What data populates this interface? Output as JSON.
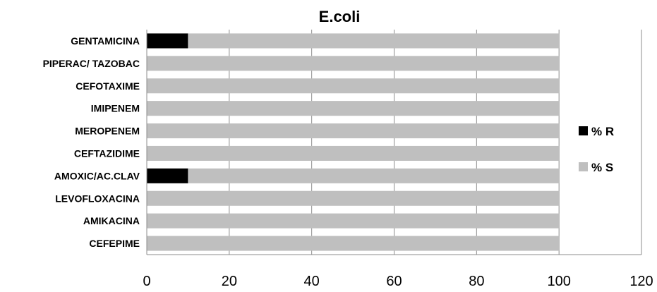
{
  "chart_data": {
    "type": "bar",
    "orientation": "horizontal",
    "stacked": true,
    "title": "E.coli",
    "xlabel": "",
    "ylabel": "",
    "xlim": [
      0,
      120
    ],
    "x_ticks": [
      "0",
      "20",
      "40",
      "60",
      "80",
      "100",
      "120"
    ],
    "grid": "vertical gridlines",
    "legend_position": "right",
    "categories": [
      "GENTAMICINA",
      "PIPERAC/ TAZOBAC",
      "CEFOTAXIME",
      "IMIPENEM",
      "MEROPENEM",
      "CEFTAZIDIME",
      "AMOXIC/AC.CLAV",
      "LEVOFLOXACINA",
      "AMIKACINA",
      "CEFEPIME"
    ],
    "series": [
      {
        "name": "% R",
        "color": "#000000",
        "values": [
          10,
          0,
          0,
          0,
          0,
          0,
          10,
          0,
          0,
          0
        ]
      },
      {
        "name": "% S",
        "color": "#bfbfbf",
        "values": [
          90,
          100,
          100,
          100,
          100,
          100,
          90,
          100,
          100,
          100
        ]
      }
    ]
  }
}
